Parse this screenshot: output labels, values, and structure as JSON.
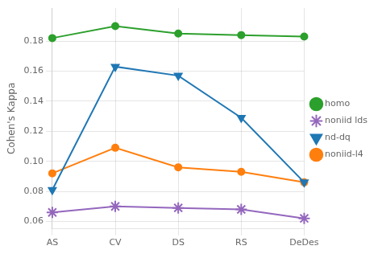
{
  "chart_data": {
    "type": "line",
    "categories": [
      "AS",
      "CV",
      "DS",
      "RS",
      "DeDes"
    ],
    "series": [
      {
        "name": "homo",
        "color": "#2ca02c",
        "marker": "circle",
        "line_style": "solid",
        "values": [
          0.182,
          0.19,
          0.185,
          0.184,
          0.183
        ]
      },
      {
        "name": "noniid lds",
        "color": "#9467bd",
        "marker": "star",
        "line_style": "solid",
        "values": [
          0.066,
          0.07,
          0.069,
          0.068,
          0.062
        ]
      },
      {
        "name": "nd-dq",
        "color": "#1f77b4",
        "marker": "triangle-down",
        "line_style": "solid",
        "values": [
          0.081,
          0.163,
          0.157,
          0.129,
          0.086
        ]
      },
      {
        "name": "noniid-l4",
        "color": "#ff7f0e",
        "marker": "circle",
        "line_style": "solid",
        "values": [
          0.092,
          0.109,
          0.096,
          0.093,
          0.086
        ]
      }
    ],
    "ylabel": "Cohen's Kappa",
    "ylim": [
      0.055,
      0.202
    ],
    "yticks": [
      0.06,
      0.08,
      {
        "value": 0.1,
        "label": "0.10"
      },
      0.12,
      0.14,
      0.16,
      0.18
    ],
    "grid": true,
    "legend": "right"
  }
}
